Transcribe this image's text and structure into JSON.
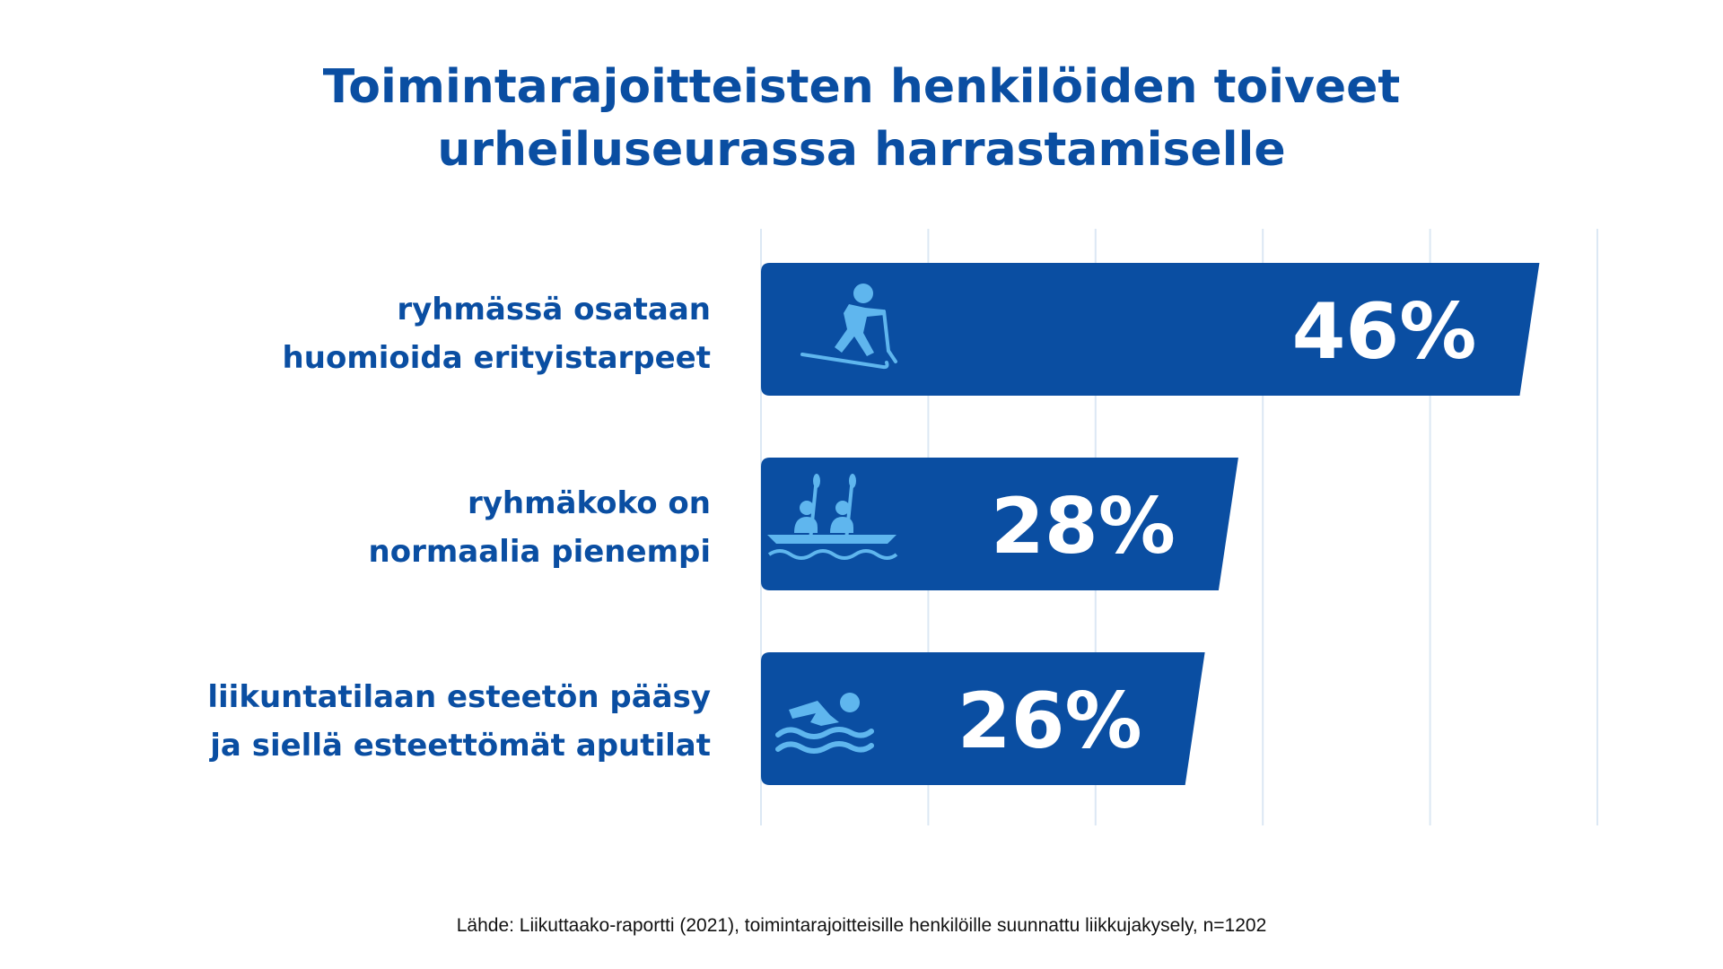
{
  "colors": {
    "bar": "#0a4ea2",
    "icon": "#5fb6ee",
    "title": "#0a4ea2",
    "grid": "#dce8f4",
    "value_text": "#ffffff"
  },
  "chart_data": {
    "type": "bar",
    "orientation": "horizontal",
    "title_lines": [
      "Toimintarajoitteisten henkilöiden toiveet",
      "urheiluseurassa harrastamiselle"
    ],
    "categories": [
      [
        "ryhmässä osataan",
        "huomioida erityistarpeet"
      ],
      [
        "ryhmäkoko on",
        "normaalia pienempi"
      ],
      [
        "liikuntatilaan esteetön pääsy",
        "ja siellä esteettömät aputilat"
      ]
    ],
    "values": [
      46,
      28,
      26
    ],
    "value_labels": [
      "46%",
      "28%",
      "26%"
    ],
    "icons": [
      "skier-icon",
      "canoe-icon",
      "swimmer-icon"
    ],
    "unit": "%",
    "xlim": [
      0,
      50
    ],
    "x_gridlines": [
      0,
      10,
      20,
      30,
      40,
      50
    ],
    "grid": true,
    "source": "Lähde: Liikuttaako-raportti (2021), toimintarajoitteisille henkilöille suunnattu liikkujakysely, n=1202"
  }
}
